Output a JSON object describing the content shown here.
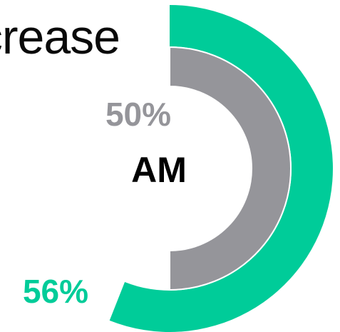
{
  "heading": "crease",
  "center_label": "AM",
  "colors": {
    "outer": "#00cc99",
    "inner": "#95959a",
    "divider": "#ffffff"
  },
  "chart_data": {
    "type": "pie",
    "series": [
      {
        "name": "",
        "value": 56,
        "label": "56%",
        "color": "#00cc99"
      },
      {
        "name": "",
        "value": 50,
        "label": "50%",
        "color": "#95959a"
      }
    ],
    "max": 100
  }
}
